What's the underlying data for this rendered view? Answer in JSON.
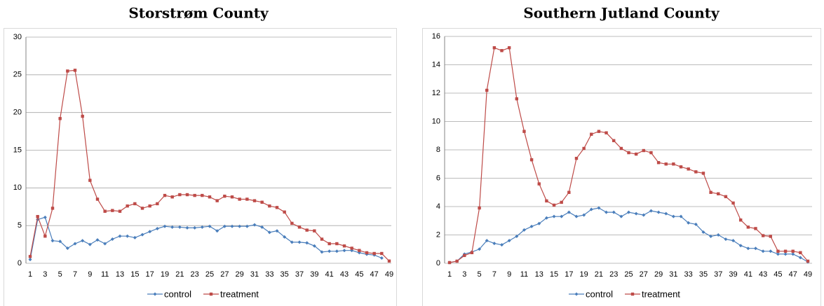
{
  "chart_data": [
    {
      "type": "line",
      "title": "Storstrøm County",
      "categories": [
        1,
        null,
        3,
        null,
        5,
        null,
        7,
        null,
        9,
        null,
        11,
        null,
        13,
        null,
        15,
        null,
        17,
        null,
        19,
        null,
        21,
        null,
        23,
        null,
        25,
        null,
        27,
        null,
        29,
        null,
        31,
        null,
        33,
        null,
        35,
        null,
        37,
        null,
        39,
        null,
        41,
        null,
        43,
        null,
        45,
        null,
        47,
        null,
        49
      ],
      "ylim": [
        0,
        30
      ],
      "yticks": [
        0,
        5,
        10,
        15,
        20,
        25,
        30
      ],
      "grid": true,
      "series": [
        {
          "name": "control",
          "color": "#4a7ebb",
          "values": [
            0.5,
            5.8,
            6.1,
            3.0,
            2.9,
            2.0,
            2.6,
            3.0,
            2.5,
            3.1,
            2.6,
            3.2,
            3.6,
            3.6,
            3.4,
            3.8,
            4.2,
            4.6,
            4.9,
            4.8,
            4.8,
            4.7,
            4.7,
            4.8,
            4.9,
            4.3,
            4.9,
            4.9,
            4.9,
            4.9,
            5.1,
            4.8,
            4.1,
            4.3,
            3.5,
            2.8,
            2.8,
            2.7,
            2.3,
            1.5,
            1.6,
            1.6,
            1.7,
            1.7,
            1.4,
            1.2,
            1.1,
            0.7,
            null
          ]
        },
        {
          "name": "treatment",
          "color": "#be4b48",
          "values": [
            0.9,
            6.2,
            3.6,
            7.3,
            19.2,
            25.5,
            25.6,
            19.5,
            11.0,
            8.5,
            6.9,
            7.0,
            6.9,
            7.6,
            7.9,
            7.3,
            7.6,
            7.9,
            9.0,
            8.8,
            9.1,
            9.1,
            9.0,
            9.0,
            8.8,
            8.3,
            8.9,
            8.8,
            8.5,
            8.5,
            8.3,
            8.1,
            7.6,
            7.4,
            6.8,
            5.3,
            4.8,
            4.4,
            4.3,
            3.2,
            2.6,
            2.6,
            2.3,
            2.0,
            1.7,
            1.4,
            1.3,
            1.3,
            0.3
          ]
        }
      ]
    },
    {
      "type": "line",
      "title": "Southern Jutland County",
      "categories": [
        1,
        null,
        3,
        null,
        5,
        null,
        7,
        null,
        9,
        null,
        11,
        null,
        13,
        null,
        15,
        null,
        17,
        null,
        19,
        null,
        21,
        null,
        23,
        null,
        25,
        null,
        27,
        null,
        29,
        null,
        31,
        null,
        33,
        null,
        35,
        null,
        37,
        null,
        39,
        null,
        41,
        null,
        43,
        null,
        45,
        null,
        47,
        null,
        49
      ],
      "ylim": [
        0,
        16
      ],
      "yticks": [
        0,
        2,
        4,
        6,
        8,
        10,
        12,
        14,
        16
      ],
      "grid": true,
      "series": [
        {
          "name": "control",
          "color": "#4a7ebb",
          "values": [
            0.05,
            0.15,
            0.65,
            0.8,
            1.0,
            1.6,
            1.4,
            1.3,
            1.6,
            1.9,
            2.35,
            2.6,
            2.8,
            3.2,
            3.3,
            3.3,
            3.6,
            3.3,
            3.4,
            3.8,
            3.9,
            3.6,
            3.6,
            3.3,
            3.6,
            3.5,
            3.4,
            3.7,
            3.6,
            3.5,
            3.3,
            3.3,
            2.85,
            2.75,
            2.2,
            1.9,
            2.0,
            1.7,
            1.6,
            1.25,
            1.05,
            1.05,
            0.85,
            0.85,
            0.65,
            0.65,
            0.65,
            0.4,
            0.1
          ]
        },
        {
          "name": "treatment",
          "color": "#be4b48",
          "values": [
            0.05,
            0.15,
            0.55,
            0.75,
            3.9,
            12.2,
            15.2,
            15.0,
            15.2,
            11.6,
            9.3,
            7.3,
            5.6,
            4.4,
            4.1,
            4.3,
            5.0,
            7.4,
            8.1,
            9.1,
            9.3,
            9.2,
            8.65,
            8.1,
            7.8,
            7.7,
            7.95,
            7.8,
            7.1,
            7.0,
            7.0,
            6.8,
            6.65,
            6.45,
            6.35,
            5.0,
            4.9,
            4.7,
            4.25,
            3.05,
            2.55,
            2.45,
            1.95,
            1.9,
            0.85,
            0.85,
            0.85,
            0.75,
            0.15
          ]
        }
      ]
    }
  ]
}
